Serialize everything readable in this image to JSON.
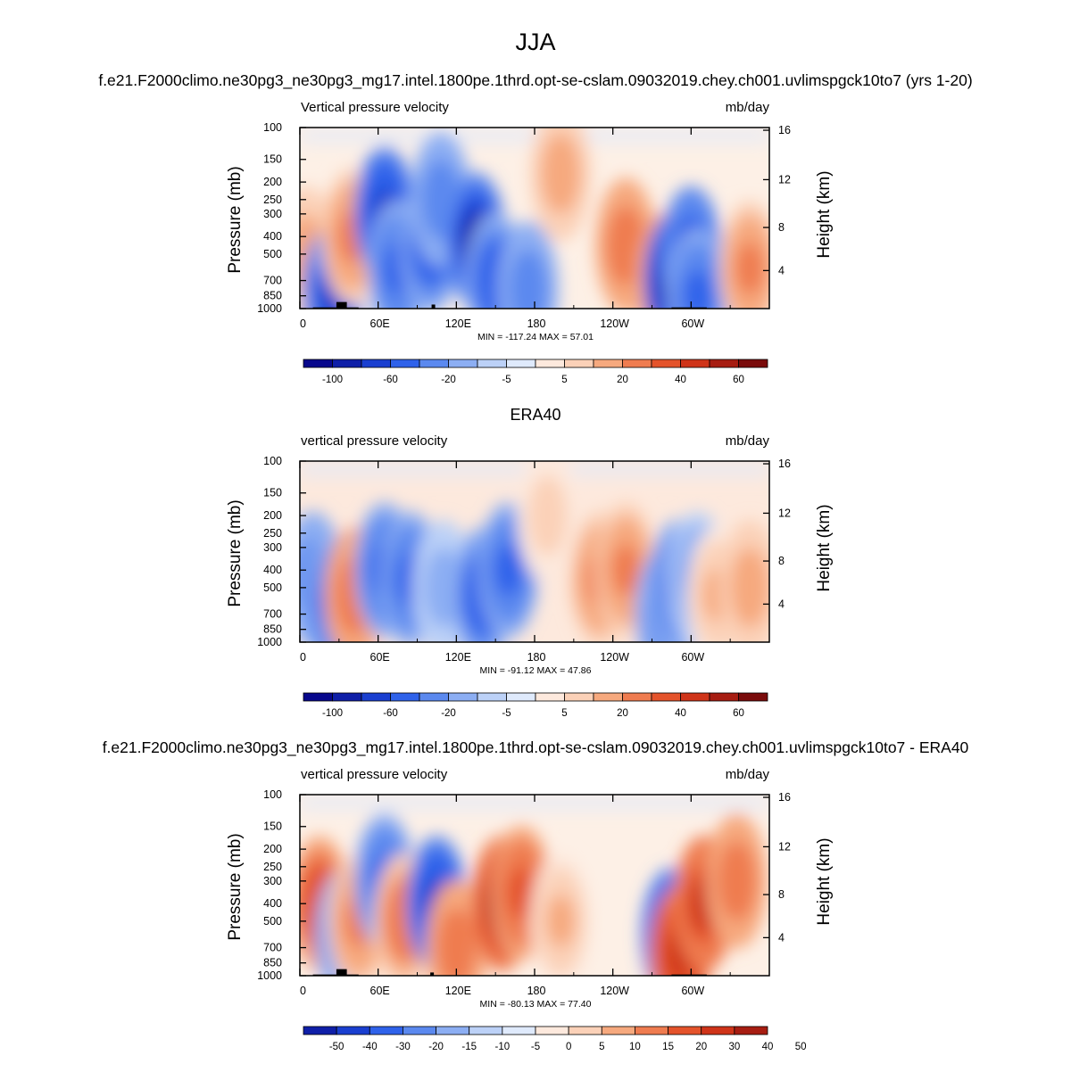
{
  "figure": {
    "season": "JJA",
    "case_title": "f.e21.F2000climo.ne30pg3_ne30pg3_mg17.intel.1800pe.1thrd.opt-se-cslam.09032019.chey.ch001.uvlimspgck10to7 (yrs 1-20)",
    "obs_title": "ERA40",
    "diff_title": "f.e21.F2000climo.ne30pg3_ne30pg3_mg17.intel.1800pe.1thrd.opt-se-cslam.09032019.chey.ch001.uvlimspgck10to7 - ERA40"
  },
  "colors": {
    "blues": [
      "#08088c",
      "#0f1fa8",
      "#1a3fd0",
      "#2f62ea",
      "#5b89ef",
      "#8caef3",
      "#bcd1f7",
      "#dfeafc"
    ],
    "reds": [
      "#fde9dd",
      "#fbd1b8",
      "#f6a97e",
      "#ef7c50",
      "#e4532b",
      "#cf3419",
      "#a71d12",
      "#7a0b0b"
    ],
    "topography": "#000000"
  },
  "chart_data": [
    {
      "type": "heatmap",
      "panel": "model",
      "left_label": "Vertical pressure velocity",
      "right_label": "mb/day",
      "xlabel": "",
      "ylabel": "Pressure (mb)",
      "ylabel_right": "Height (km)",
      "x_ticks": [
        "0",
        "60E",
        "120E",
        "180",
        "120W",
        "60W"
      ],
      "y_ticks": [
        "100",
        "150",
        "200",
        "250",
        "300",
        "400",
        "500",
        "700",
        "850",
        "1000"
      ],
      "y2_ticks": [
        "16",
        "12",
        "8",
        "4"
      ],
      "stats": "MIN = -117.24  MAX =  57.01",
      "min": -117.24,
      "max": 57.01,
      "colorbar_labels": [
        "-100",
        "-60",
        "-20",
        "-5",
        "5",
        "20",
        "40",
        "60"
      ],
      "features": [
        {
          "lon": 5,
          "p": 500,
          "v": 15
        },
        {
          "lon": 25,
          "p": 830,
          "v": -60
        },
        {
          "lon": 40,
          "p": 400,
          "v": 22
        },
        {
          "lon": 65,
          "p": 300,
          "v": -70
        },
        {
          "lon": 75,
          "p": 600,
          "v": -45
        },
        {
          "lon": 100,
          "p": 450,
          "v": -50
        },
        {
          "lon": 108,
          "p": 250,
          "v": -35
        },
        {
          "lon": 135,
          "p": 420,
          "v": -85
        },
        {
          "lon": 150,
          "p": 700,
          "v": -55
        },
        {
          "lon": 175,
          "p": 780,
          "v": -35
        },
        {
          "lon": 200,
          "p": 180,
          "v": 18
        },
        {
          "lon": 250,
          "p": 450,
          "v": 35
        },
        {
          "lon": 280,
          "p": 700,
          "v": 32
        },
        {
          "lon": 287,
          "p": 700,
          "v": -105
        },
        {
          "lon": 300,
          "p": 500,
          "v": -60
        },
        {
          "lon": 305,
          "p": 850,
          "v": -40
        },
        {
          "lon": 345,
          "p": 600,
          "v": 25
        }
      ]
    },
    {
      "type": "heatmap",
      "panel": "obs",
      "left_label": "vertical pressure velocity",
      "right_label": "mb/day",
      "xlabel": "",
      "ylabel": "Pressure (mb)",
      "ylabel_right": "Height (km)",
      "x_ticks": [
        "0",
        "60E",
        "120E",
        "180",
        "120W",
        "60W"
      ],
      "y_ticks": [
        "100",
        "150",
        "200",
        "250",
        "300",
        "400",
        "500",
        "700",
        "850",
        "1000"
      ],
      "y2_ticks": [
        "16",
        "12",
        "8",
        "4"
      ],
      "stats": "MIN = -91.12  MAX =  47.86",
      "min": -91.12,
      "max": 47.86,
      "colorbar_labels": [
        "-100",
        "-60",
        "-20",
        "-5",
        "5",
        "20",
        "40",
        "60"
      ],
      "features": [
        {
          "lon": 10,
          "p": 450,
          "v": -30
        },
        {
          "lon": 25,
          "p": 600,
          "v": -40
        },
        {
          "lon": 42,
          "p": 550,
          "v": 30
        },
        {
          "lon": 65,
          "p": 400,
          "v": -40
        },
        {
          "lon": 85,
          "p": 450,
          "v": -40
        },
        {
          "lon": 110,
          "p": 500,
          "v": -15
        },
        {
          "lon": 140,
          "p": 550,
          "v": -55
        },
        {
          "lon": 160,
          "p": 400,
          "v": -40
        },
        {
          "lon": 190,
          "p": 200,
          "v": 8
        },
        {
          "lon": 230,
          "p": 450,
          "v": 25
        },
        {
          "lon": 250,
          "p": 400,
          "v": 22
        },
        {
          "lon": 280,
          "p": 700,
          "v": -35
        },
        {
          "lon": 290,
          "p": 500,
          "v": -45
        },
        {
          "lon": 305,
          "p": 450,
          "v": -25
        },
        {
          "lon": 320,
          "p": 550,
          "v": 12
        },
        {
          "lon": 345,
          "p": 500,
          "v": 18
        }
      ]
    },
    {
      "type": "heatmap",
      "panel": "difference",
      "left_label": "vertical pressure velocity",
      "right_label": "mb/day",
      "xlabel": "",
      "ylabel": "Pressure (mb)",
      "ylabel_right": "Height (km)",
      "x_ticks": [
        "0",
        "60E",
        "120E",
        "180",
        "120W",
        "60W"
      ],
      "y_ticks": [
        "100",
        "150",
        "200",
        "250",
        "300",
        "400",
        "500",
        "700",
        "850",
        "1000"
      ],
      "y2_ticks": [
        "16",
        "12",
        "8",
        "4"
      ],
      "stats": "MIN = -80.13  MAX =  77.40",
      "min": -80.13,
      "max": 77.4,
      "colorbar_labels": [
        "-50",
        "-40",
        "-30",
        "-20",
        "-15",
        "-10",
        "-5",
        "0",
        "5",
        "10",
        "15",
        "20",
        "30",
        "40",
        "50"
      ],
      "features": [
        {
          "lon": 15,
          "p": 400,
          "v": 30
        },
        {
          "lon": 35,
          "p": 600,
          "v": -20
        },
        {
          "lon": 45,
          "p": 500,
          "v": 12
        },
        {
          "lon": 65,
          "p": 300,
          "v": -25
        },
        {
          "lon": 80,
          "p": 500,
          "v": 15
        },
        {
          "lon": 105,
          "p": 400,
          "v": -40
        },
        {
          "lon": 120,
          "p": 700,
          "v": 20
        },
        {
          "lon": 155,
          "p": 400,
          "v": 55
        },
        {
          "lon": 170,
          "p": 350,
          "v": 25
        },
        {
          "lon": 200,
          "p": 500,
          "v": 6
        },
        {
          "lon": 285,
          "p": 600,
          "v": -50
        },
        {
          "lon": 292,
          "p": 750,
          "v": 40
        },
        {
          "lon": 310,
          "p": 400,
          "v": 35
        },
        {
          "lon": 335,
          "p": 300,
          "v": 20
        }
      ]
    }
  ]
}
